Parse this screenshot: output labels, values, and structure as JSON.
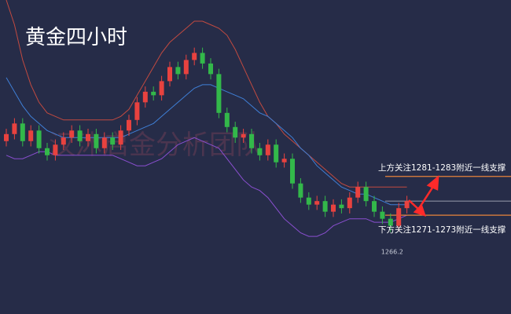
{
  "chart_data": {
    "type": "candlestick",
    "title": "黄金四小时",
    "watermark": "汉沐启金分析团队",
    "ylim": [
      1243,
      1332
    ],
    "up_color": "#e8423f",
    "down_color": "#33b84a",
    "open": [
      1292,
      1294,
      1297,
      1292,
      1295,
      1290,
      1288,
      1291,
      1293,
      1295,
      1292,
      1294,
      1290,
      1293,
      1291,
      1295,
      1298,
      1303,
      1306,
      1305,
      1309,
      1313,
      1311,
      1315,
      1317,
      1314,
      1311,
      1300,
      1296,
      1293,
      1294,
      1290,
      1288,
      1291,
      1286,
      1287,
      1280,
      1276,
      1274,
      1275,
      1272,
      1274,
      1273,
      1276,
      1279,
      1275,
      1272,
      1270,
      1268,
      1273
    ],
    "high": [
      1295.5,
      1298.5,
      1298.5,
      1296.5,
      1296.5,
      1291.5,
      1292.5,
      1294.5,
      1296.5,
      1296.5,
      1295.5,
      1295.5,
      1294.5,
      1294.5,
      1296.5,
      1299.5,
      1304.5,
      1307.5,
      1307.5,
      1310.5,
      1314.5,
      1314.5,
      1316.5,
      1318.5,
      1318.5,
      1315.5,
      1312.5,
      1301.5,
      1297.5,
      1295.5,
      1295.5,
      1291.5,
      1292.5,
      1292.5,
      1288.5,
      1288.5,
      1281.5,
      1277.5,
      1276.5,
      1276.5,
      1275.5,
      1275.5,
      1277.5,
      1280.5,
      1280.5,
      1276.5,
      1273.5,
      1271.5,
      1274.5,
      1276.5
    ],
    "low": [
      1290.5,
      1292.5,
      1290.5,
      1290.5,
      1288.5,
      1286.5,
      1286.5,
      1289.5,
      1291.5,
      1290.5,
      1290.5,
      1288.5,
      1288.5,
      1289.5,
      1289.5,
      1293.5,
      1296.5,
      1301.5,
      1303.5,
      1303.5,
      1307.5,
      1309.5,
      1309.5,
      1313.5,
      1312.5,
      1309.5,
      1298.5,
      1294.5,
      1291.5,
      1291.5,
      1288.5,
      1286.5,
      1286.5,
      1284.5,
      1284.5,
      1278.5,
      1274.5,
      1272.5,
      1272.5,
      1270.5,
      1270.5,
      1271.5,
      1271.5,
      1274.5,
      1273.5,
      1270.5,
      1268.5,
      1266.2,
      1266.5,
      1271.5
    ],
    "close": [
      1294,
      1297,
      1292,
      1295,
      1290,
      1288,
      1291,
      1293,
      1295,
      1292,
      1294,
      1290,
      1293,
      1291,
      1295,
      1298,
      1303,
      1306,
      1305,
      1309,
      1313,
      1311,
      1315,
      1317,
      1314,
      1311,
      1300,
      1296,
      1293,
      1294,
      1290,
      1288,
      1291,
      1286,
      1287,
      1280,
      1276,
      1274,
      1275,
      1272,
      1274,
      1273,
      1276,
      1279,
      1275,
      1272,
      1270,
      1268,
      1273,
      1275
    ],
    "low_label": "1266.2",
    "series": [
      {
        "color": "#c24a40",
        "values": [
          1332,
          1325,
          1315,
          1308,
          1303,
          1300,
          1299,
          1298,
          1298,
          1298,
          1298,
          1298,
          1298,
          1298,
          1299,
          1301,
          1305,
          1309,
          1313,
          1317,
          1320,
          1322,
          1324,
          1326,
          1326,
          1325,
          1324,
          1322,
          1318,
          1313,
          1308,
          1303,
          1299,
          1297,
          1294,
          1292,
          1290,
          1288,
          1286,
          1284,
          1282,
          1280,
          1279,
          1279,
          1279,
          1279,
          1279,
          1279,
          1279,
          1279
        ]
      },
      {
        "color": "#3f7fd6",
        "values": [
          1310,
          1306,
          1302,
          1299,
          1297,
          1295,
          1294,
          1293,
          1293,
          1293,
          1293,
          1293,
          1293,
          1293,
          1293,
          1294,
          1295,
          1296,
          1297,
          1299,
          1301,
          1303,
          1305,
          1307,
          1308,
          1308,
          1307,
          1306,
          1305,
          1304,
          1302,
          1300,
          1299,
          1297,
          1295,
          1293,
          1290,
          1288,
          1285,
          1283,
          1281,
          1279,
          1278,
          1277,
          1277,
          1276,
          1275,
          1274,
          1274,
          1274
        ]
      },
      {
        "color": "#8a4fd0",
        "values": [
          1288,
          1287,
          1287,
          1288,
          1289,
          1289,
          1288,
          1288,
          1288,
          1288,
          1288,
          1288,
          1288,
          1288,
          1287,
          1286,
          1285,
          1285,
          1286,
          1287,
          1289,
          1291,
          1292,
          1293,
          1292,
          1291,
          1290,
          1287,
          1284,
          1281,
          1279,
          1278,
          1276,
          1273,
          1270,
          1268,
          1266,
          1265,
          1265,
          1266,
          1268,
          1269,
          1270,
          1270,
          1270,
          1269,
          1269,
          1269,
          1270,
          1271
        ]
      }
    ],
    "hlines": [
      {
        "value": 1282,
        "color": "#e8833a"
      },
      {
        "value": 1275,
        "color": "#8a8fa0"
      },
      {
        "value": 1271,
        "color": "#e8833a"
      }
    ],
    "annotations": [
      "上方关注1281-1283附近一线支撑",
      "下方关注1271-1273附近一线支撑"
    ]
  }
}
